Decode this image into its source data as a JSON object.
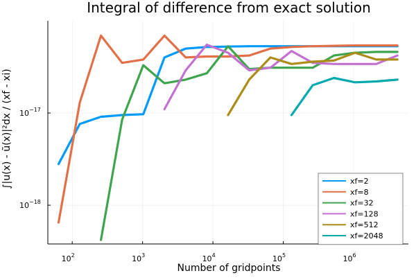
{
  "chart_data": {
    "type": "line",
    "title": "Integral of difference from exact solution",
    "xlabel": "Number of gridpoints",
    "ylabel": "∫|u(x) - ũ(x)|²dx / (xf - xi)",
    "xscale": "log",
    "yscale": "log",
    "xlim": [
      45,
      6000000
    ],
    "ylim": [
      3.8e-19,
      1e-16
    ],
    "grid": true,
    "legend_position": "bottom-right",
    "x_ticks": [
      {
        "value": 100,
        "base": "10",
        "exp": "2"
      },
      {
        "value": 1000,
        "base": "10",
        "exp": "3"
      },
      {
        "value": 10000,
        "base": "10",
        "exp": "4"
      },
      {
        "value": 100000,
        "base": "10",
        "exp": "5"
      },
      {
        "value": 1000000,
        "base": "10",
        "exp": "6"
      }
    ],
    "y_ticks": [
      {
        "value": 1e-18,
        "base": "10",
        "exp": "−18"
      },
      {
        "value": 1e-17,
        "base": "10",
        "exp": "−17"
      }
    ],
    "series": [
      {
        "name": "xf=2",
        "color": "#009AFA",
        "points": [
          [
            64,
            2.8e-18
          ],
          [
            128,
            7.6e-18
          ],
          [
            256,
            9.1e-18
          ],
          [
            512,
            9.5e-18
          ],
          [
            1024,
            9.7e-18
          ],
          [
            2048,
            4e-17
          ],
          [
            4096,
            5e-17
          ],
          [
            8192,
            5.2e-17
          ],
          [
            16384,
            5.25e-17
          ],
          [
            32768,
            5.3e-17
          ],
          [
            65536,
            5.3e-17
          ],
          [
            131072,
            5.3e-17
          ],
          [
            262144,
            5.3e-17
          ],
          [
            524288,
            5.3e-17
          ],
          [
            1048576,
            5.3e-17
          ],
          [
            2097152,
            5.3e-17
          ],
          [
            4194304,
            5.3e-17
          ]
        ]
      },
      {
        "name": "xf=8",
        "color": "#E36F47",
        "points": [
          [
            64,
            6.5e-19
          ],
          [
            128,
            1.3e-17
          ],
          [
            256,
            6.9e-17
          ],
          [
            512,
            3.5e-17
          ],
          [
            1024,
            3.8e-17
          ],
          [
            2048,
            6.9e-17
          ],
          [
            4096,
            4e-17
          ],
          [
            8192,
            4.1e-17
          ],
          [
            16384,
            4.1e-17
          ],
          [
            32768,
            4.2e-17
          ],
          [
            65536,
            5e-17
          ],
          [
            131072,
            5.2e-17
          ],
          [
            262144,
            5.3e-17
          ],
          [
            524288,
            5.35e-17
          ],
          [
            1048576,
            5.4e-17
          ],
          [
            2097152,
            5.4e-17
          ],
          [
            4194304,
            5.4e-17
          ]
        ]
      },
      {
        "name": "xf=32",
        "color": "#3EA44E",
        "points": [
          [
            256,
            4.2e-19
          ],
          [
            512,
            8.5e-18
          ],
          [
            1024,
            3.3e-17
          ],
          [
            2048,
            2.1e-17
          ],
          [
            4096,
            2.3e-17
          ],
          [
            8192,
            2.7e-17
          ],
          [
            16384,
            5.3e-17
          ],
          [
            32768,
            3e-17
          ],
          [
            65536,
            3.1e-17
          ],
          [
            131072,
            3.1e-17
          ],
          [
            262144,
            3.1e-17
          ],
          [
            524288,
            4.2e-17
          ],
          [
            1048576,
            4.5e-17
          ],
          [
            2097152,
            4.6e-17
          ],
          [
            4194304,
            4.6e-17
          ]
        ]
      },
      {
        "name": "xf=128",
        "color": "#C271D2",
        "points": [
          [
            2048,
            1.1e-17
          ],
          [
            4096,
            2.9e-17
          ],
          [
            8192,
            5.5e-17
          ],
          [
            16384,
            4.5e-17
          ],
          [
            32768,
            2.9e-17
          ],
          [
            65536,
            3.1e-17
          ],
          [
            131072,
            4.7e-17
          ],
          [
            262144,
            3.5e-17
          ],
          [
            524288,
            3.4e-17
          ],
          [
            1048576,
            3.4e-17
          ],
          [
            2097152,
            3.4e-17
          ],
          [
            4194304,
            4.2e-17
          ]
        ]
      },
      {
        "name": "xf=512",
        "color": "#AC8D18",
        "points": [
          [
            16384,
            9.5e-18
          ],
          [
            32768,
            2.3e-17
          ],
          [
            65536,
            4e-17
          ],
          [
            131072,
            3.4e-17
          ],
          [
            262144,
            3.6e-17
          ],
          [
            524288,
            3.7e-17
          ],
          [
            1048576,
            4.5e-17
          ],
          [
            2097152,
            3.8e-17
          ],
          [
            4194304,
            3.8e-17
          ]
        ]
      },
      {
        "name": "xf=2048",
        "color": "#00A9AD",
        "points": [
          [
            131072,
            9.5e-18
          ],
          [
            262144,
            2e-17
          ],
          [
            524288,
            2.4e-17
          ],
          [
            1048576,
            2.15e-17
          ],
          [
            2097152,
            2.2e-17
          ],
          [
            4194304,
            2.3e-17
          ]
        ]
      }
    ]
  }
}
